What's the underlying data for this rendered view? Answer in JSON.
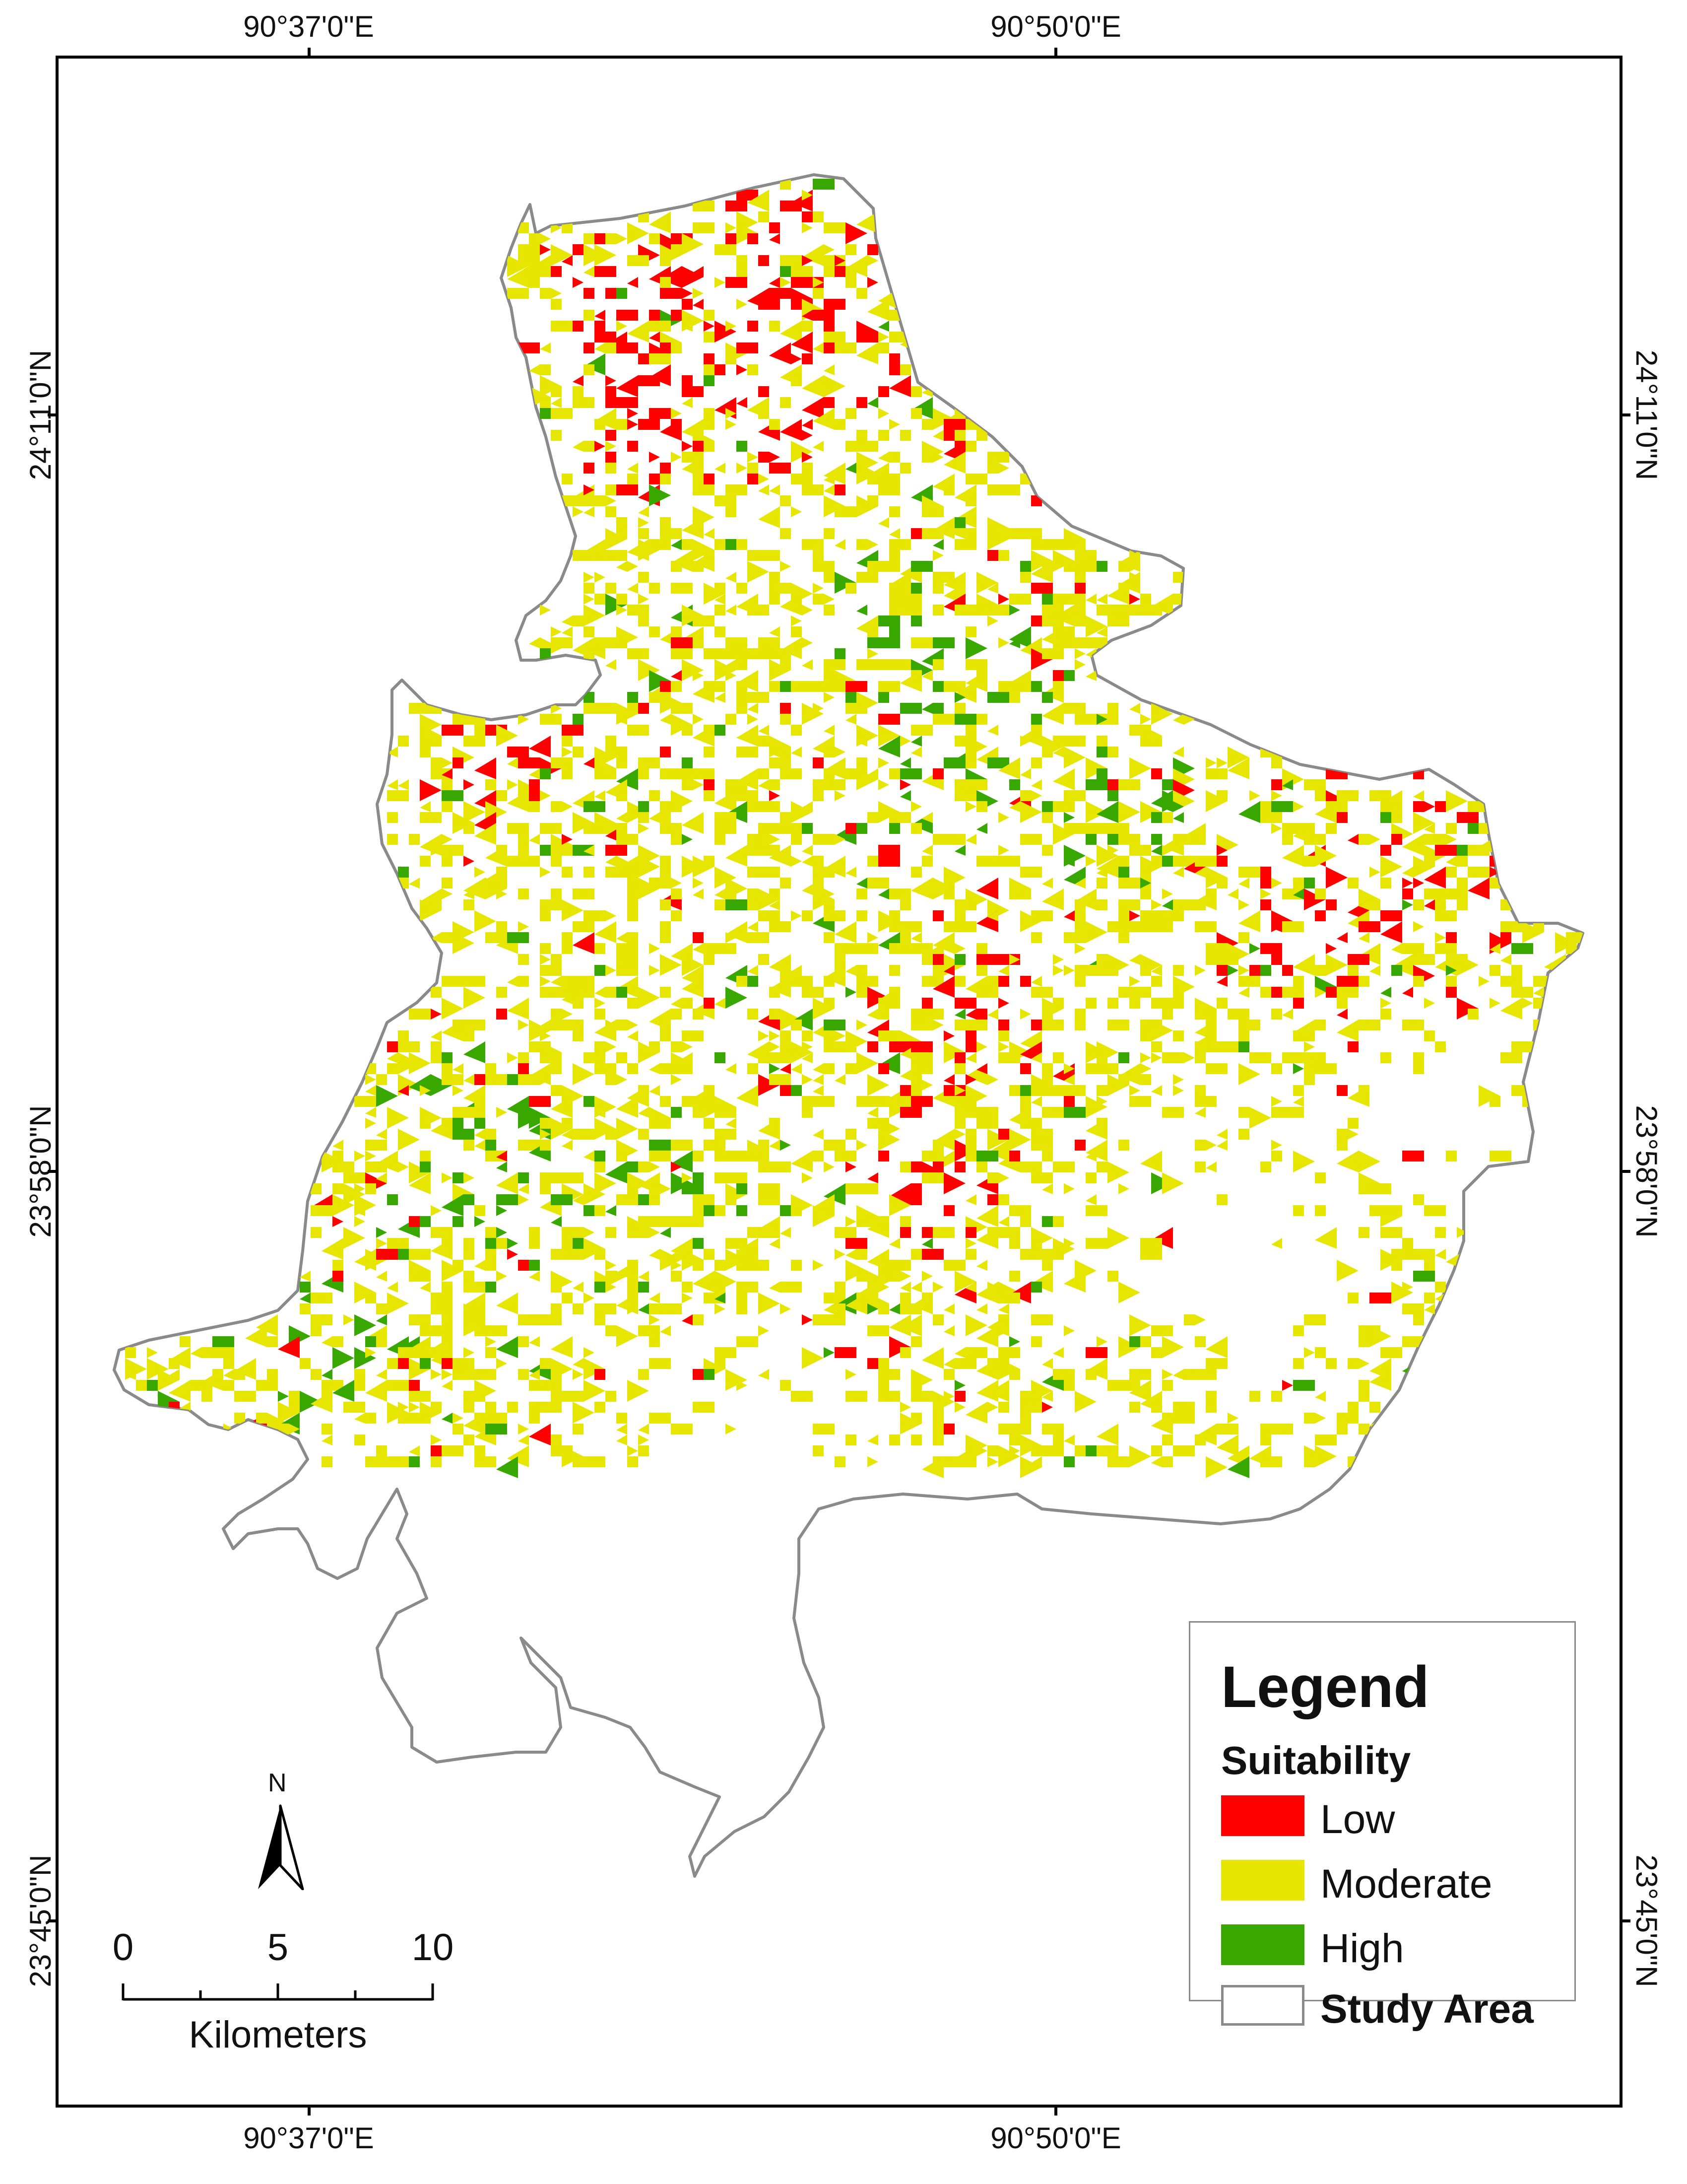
{
  "graticule": {
    "top": [
      "90°37'0\"E",
      "90°50'0\"E"
    ],
    "bottom": [
      "90°37'0\"E",
      "90°50'0\"E"
    ],
    "left": [
      "24°11'0\"N",
      "23°58'0\"N",
      "23°45'0\"N"
    ],
    "right": [
      "24°11'0\"N",
      "23°58'0\"N",
      "23°45'0\"N"
    ]
  },
  "legend": {
    "title": "Legend",
    "subtitle": "Suitability",
    "items": [
      {
        "label": "Low",
        "color": "#ff0000"
      },
      {
        "label": "Moderate",
        "color": "#e6e600"
      },
      {
        "label": "High",
        "color": "#38a800"
      },
      {
        "label": "Study Area",
        "color": "#ffffff",
        "outline": "#8a8a8a"
      }
    ]
  },
  "scale_bar": {
    "ticks": [
      "0",
      "5",
      "10"
    ],
    "units": "Kilometers"
  },
  "north_arrow": {
    "label": "N"
  },
  "colors": {
    "outline": "#8a8a8a",
    "frame": "#000000"
  }
}
